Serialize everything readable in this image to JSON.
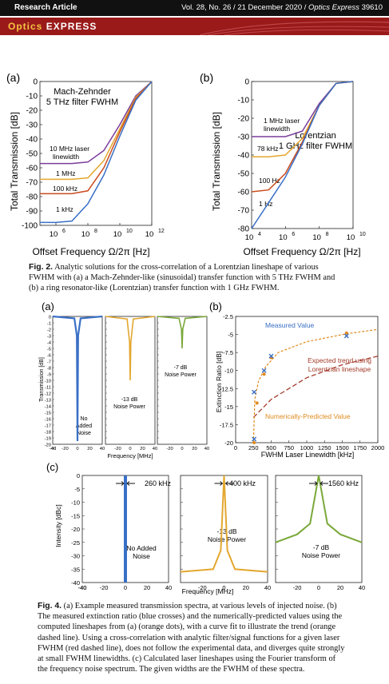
{
  "header": {
    "article_type": "Research Article",
    "citation_vol": "Vol. 28, No. 26 / 21 December 2020 / ",
    "journal_italic": "Optics Express",
    "page": "  39610",
    "brand_optics": "Optics",
    "brand_express": "EXPRESS"
  },
  "fig2": {
    "panel_a": {
      "label": "(a)",
      "title_line1": "Mach-Zehnder",
      "title_line2": "5 THz filter FWHM",
      "ylabel": "Total Transmission [dB]",
      "xlabel": "Offset Frequency Ω/2π [Hz]",
      "yticks": [
        "0",
        "-10",
        "-20",
        "-30",
        "-40",
        "-50",
        "-60",
        "-70",
        "-80",
        "-90",
        "-100"
      ],
      "xticks": [
        "10",
        "10",
        "10",
        "10"
      ],
      "xexp": [
        "6",
        "8",
        "10",
        "12"
      ],
      "annotations": [
        "10 MHz laser",
        "linewidth",
        "1 MHz",
        "100 kHz",
        "1 kHz"
      ]
    },
    "panel_b": {
      "label": "(b)",
      "title_line1": "Lorentzian",
      "title_line2": "1 GHz filter FWHM",
      "ylabel": "Total Transmission [dB]",
      "xlabel": "Offset Frequency Ω/2π [Hz]",
      "yticks": [
        "0",
        "-10",
        "-20",
        "-30",
        "-40",
        "-50",
        "-60",
        "-70",
        "-80"
      ],
      "xticks": [
        "10",
        "10",
        "10",
        "10"
      ],
      "xexp": [
        "4",
        "6",
        "8",
        "10"
      ],
      "annotations": [
        "1 MHz laser",
        "linewidth",
        "78 kHz",
        "100 Hz",
        "1 Hz"
      ]
    },
    "caption_bold": "Fig. 2.",
    "caption_text": [
      "Analytic solutions for the cross-correlation of a Lorentzian lineshape of various",
      "FWHM with (a) a Mach-Zehnder-like (sinusoidal) transfer function with 5 THz FWHM and",
      "(b) a ring resonator-like (Lorentzian) transfer function with 1 GHz FWHM."
    ]
  },
  "fig4": {
    "panel_a": {
      "label": "(a)",
      "ylabel": "Transmission [dB]",
      "xlabel": "Frequency [MHz]",
      "yticks": [
        "0",
        "-1",
        "-2",
        "-3",
        "-4",
        "-5",
        "-6",
        "-7",
        "-8",
        "-9",
        "-10",
        "-11",
        "-12",
        "-13",
        "-14",
        "-15",
        "-16",
        "-17",
        "-18",
        "-19",
        "-20"
      ],
      "xticks1": [
        "-40",
        "-20",
        "0",
        "20",
        "40"
      ],
      "xticks2": [
        "-20",
        "0",
        "20",
        "40"
      ],
      "xticks3": [
        "-20",
        "0",
        "20",
        "40"
      ],
      "notes": [
        "No",
        "Added",
        "Noise",
        "-13 dB",
        "Noise Power",
        "-7 dB",
        "Noise Power"
      ]
    },
    "panel_b": {
      "label": "(b)",
      "ylabel": "Extinction Ratio [dB]",
      "xlabel": "FWHM Laser Linewidth [kHz]",
      "yticks": [
        "-2.5",
        "-5",
        "-7.5",
        "-10",
        "-12.5",
        "-15",
        "-17.5",
        "-20"
      ],
      "xticks": [
        "0",
        "250",
        "500",
        "750",
        "1000",
        "1250",
        "1500",
        "1750",
        "2000"
      ],
      "legend_measured": "Measured Value",
      "legend_expected": [
        "Expected trend using",
        "Lorentzian lineshape"
      ],
      "legend_numeric": "Numerically-Predicted Value"
    },
    "panel_c": {
      "label": "(c)",
      "ylabel": "Intensity [dBc]",
      "xlabel": "Frequency [MHz]",
      "yticks": [
        "0",
        "-5",
        "-10",
        "-15",
        "-20",
        "-25",
        "-30",
        "-35",
        "-40"
      ],
      "xticks1": [
        "-40",
        "-20",
        "0",
        "20",
        "40"
      ],
      "xticks2": [
        "-20",
        "0",
        "20",
        "40"
      ],
      "xticks3": [
        "-20",
        "0",
        "20",
        "40"
      ],
      "widths": [
        "260 kHz",
        "400 kHz",
        "1560 kHz"
      ],
      "notes": [
        "No Added",
        "Noise",
        "-13 dB",
        "Noise Power",
        "-7 dB",
        "Noise Power"
      ]
    },
    "caption_bold": "Fig. 4.",
    "caption_text": [
      "(a) Example measured transmission spectra, at various levels of injected noise. (b)",
      "The measured extinction ratio (blue crosses) and the numerically-predicted values using the",
      "computed lineshapes from (a) (orange dots), with a curve fit to illustrate the trend (orange",
      "dashed line). Using a cross-correlation with analytic filter/signal functions for a given laser",
      "FWHM (red dashed line), does not follow the experimental data, and diverges quite strongly",
      "at small FWHM linewidths. (c) Calculated laser lineshapes using the Fourier transform of",
      "the frequency noise spectrum. The given widths are the FWHM of these spectra."
    ]
  },
  "chart_data": [
    {
      "type": "line",
      "panel": "fig2a",
      "xscale": "log",
      "xlim": [
        100000,
        1000000000000
      ],
      "ylim": [
        -100,
        0
      ],
      "series": [
        {
          "name": "10 MHz laser linewidth",
          "x": [
            100000,
            1000000,
            10000000,
            100000000,
            1000000000,
            10000000000,
            100000000000,
            1000000000000
          ],
          "y": [
            -57,
            -57,
            -57,
            -56,
            -48,
            -30,
            -10,
            0
          ]
        },
        {
          "name": "1 MHz",
          "x": [
            100000,
            1000000,
            10000000,
            100000000,
            1000000000,
            10000000000,
            100000000000,
            1000000000000
          ],
          "y": [
            -68,
            -68,
            -68,
            -67,
            -55,
            -33,
            -11,
            0
          ]
        },
        {
          "name": "100 kHz",
          "x": [
            100000,
            1000000,
            10000000,
            100000000,
            1000000000,
            10000000000,
            100000000000,
            1000000000000
          ],
          "y": [
            -78,
            -78,
            -78,
            -76,
            -60,
            -35,
            -12,
            0
          ]
        },
        {
          "name": "1 kHz",
          "x": [
            100000,
            1000000,
            10000000,
            100000000,
            1000000000,
            10000000000,
            100000000000,
            1000000000000
          ],
          "y": [
            -98,
            -98,
            -97,
            -85,
            -65,
            -38,
            -13,
            0
          ]
        }
      ]
    },
    {
      "type": "line",
      "panel": "fig2b",
      "xscale": "log",
      "xlim": [
        10000,
        10000000000
      ],
      "ylim": [
        -80,
        0
      ],
      "series": [
        {
          "name": "1 MHz laser linewidth",
          "x": [
            10000,
            100000,
            1000000,
            10000000,
            100000000,
            1000000000,
            10000000000
          ],
          "y": [
            -30,
            -30,
            -30,
            -27,
            -12,
            -1,
            0
          ]
        },
        {
          "name": "78 kHz",
          "x": [
            10000,
            100000,
            1000000,
            10000000,
            100000000,
            1000000000,
            10000000000
          ],
          "y": [
            -41,
            -41,
            -40,
            -31,
            -13,
            -1,
            0
          ]
        },
        {
          "name": "100 Hz",
          "x": [
            10000,
            100000,
            1000000,
            10000000,
            100000000,
            1000000000,
            10000000000
          ],
          "y": [
            -60,
            -59,
            -50,
            -33,
            -13,
            -1,
            0
          ]
        },
        {
          "name": "1 Hz",
          "x": [
            10000,
            100000,
            1000000,
            10000000,
            100000000,
            1000000000,
            10000000000
          ],
          "y": [
            -80,
            -66,
            -52,
            -34,
            -13,
            -1,
            0
          ]
        }
      ]
    },
    {
      "type": "line",
      "panel": "fig4a",
      "xlim": [
        -40,
        40
      ],
      "ylim": [
        -20,
        0
      ],
      "series": [
        {
          "name": "No Added Noise",
          "x": [
            -40,
            -5,
            -1,
            0,
            1,
            5,
            40
          ],
          "y": [
            0,
            -0.3,
            -3,
            -19.5,
            -3,
            -0.3,
            0
          ]
        },
        {
          "name": "-13 dB Noise Power",
          "x": [
            -40,
            -5,
            -1,
            0,
            1,
            5,
            40
          ],
          "y": [
            0,
            -0.4,
            -4,
            -10,
            -4,
            -0.4,
            0
          ]
        },
        {
          "name": "-7 dB Noise Power",
          "x": [
            -40,
            -5,
            -1,
            0,
            1,
            5,
            40
          ],
          "y": [
            0,
            -0.3,
            -2,
            -5,
            -2,
            -0.3,
            0
          ]
        }
      ]
    },
    {
      "type": "scatter",
      "panel": "fig4b",
      "xlim": [
        0,
        2000
      ],
      "ylim": [
        -20,
        -2.5
      ],
      "series": [
        {
          "name": "Measured Value",
          "x": [
            260,
            260,
            400,
            500,
            1560
          ],
          "y": [
            -19.5,
            -13,
            -10,
            -8,
            -5.2
          ]
        },
        {
          "name": "Numerically-Predicted Value",
          "x": [
            260,
            300,
            400,
            500,
            1560
          ],
          "y": [
            -20,
            -14.5,
            -10.5,
            -8.2,
            -4.8
          ]
        },
        {
          "name": "Expected trend using Lorentzian lineshape",
          "x": [
            250,
            500,
            1000,
            1500,
            2000
          ],
          "y": [
            -16.5,
            -14,
            -11,
            -9.2,
            -8
          ]
        }
      ]
    },
    {
      "type": "line",
      "panel": "fig4c",
      "xlim": [
        -40,
        40
      ],
      "ylim": [
        -40,
        0
      ],
      "series": [
        {
          "name": "260 kHz",
          "x": [
            -40,
            -0.2,
            0,
            0.2,
            40
          ],
          "y": [
            -40,
            -40,
            0,
            -40,
            -40
          ]
        },
        {
          "name": "400 kHz",
          "x": [
            -40,
            -10,
            -3,
            0,
            3,
            10,
            40
          ],
          "y": [
            -36,
            -35,
            -28,
            0,
            -28,
            -35,
            -36
          ]
        },
        {
          "name": "1560 kHz",
          "x": [
            -40,
            -20,
            -8,
            0,
            8,
            20,
            40
          ],
          "y": [
            -25,
            -22,
            -18,
            0,
            -18,
            -22,
            -25
          ]
        }
      ]
    }
  ]
}
